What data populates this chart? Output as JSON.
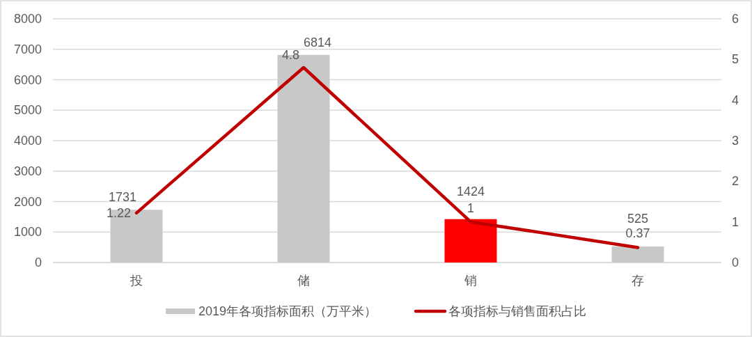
{
  "chart_data": {
    "type": "bar",
    "categories": [
      "投",
      "储",
      "销",
      "存"
    ],
    "series": [
      {
        "name": "2019年各项指标面积（万平米）",
        "color": "#c8c8c8",
        "colors": [
          "#c8c8c8",
          "#c8c8c8",
          "#ff0000",
          "#c8c8c8"
        ],
        "values": [
          1731,
          6814,
          1424,
          525
        ]
      },
      {
        "name": "各项指标与销售面积占比",
        "type": "line",
        "axis": "y2",
        "color": "#c00000",
        "values": [
          1.22,
          4.8,
          1,
          0.37
        ]
      }
    ],
    "ylim": [
      0,
      8000
    ],
    "yticks": [
      0,
      1000,
      2000,
      3000,
      4000,
      5000,
      6000,
      7000,
      8000
    ],
    "y2lim": [
      0,
      6
    ],
    "y2ticks": [
      0,
      1,
      2,
      3,
      4,
      5,
      6
    ],
    "grid": "y",
    "legend": "bottom",
    "data_labels": true
  }
}
